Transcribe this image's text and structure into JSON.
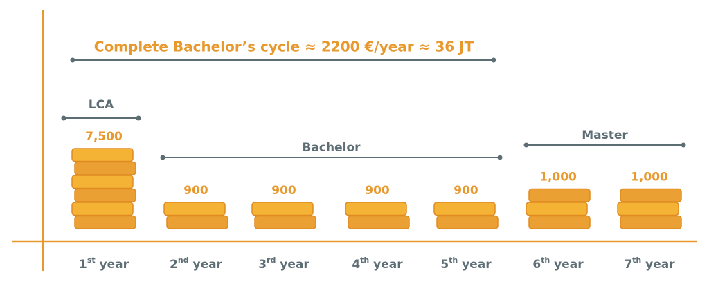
{
  "chart_data": {
    "type": "coin-stack",
    "title": "Complete Bachelor’s cycle ≈ 2200 €/year ≈ 36 JT",
    "categories": [
      "1st year",
      "2nd year",
      "3rd year",
      "4th year",
      "5th year",
      "6th year",
      "7th year"
    ],
    "values": [
      7500,
      900,
      900,
      900,
      900,
      1000,
      1000
    ],
    "value_labels": [
      "7,500",
      "900",
      "900",
      "900",
      "900",
      "1,000",
      "1,000"
    ],
    "annotations": [
      "LCA",
      "Bachelor",
      "Master"
    ],
    "color": "#f5b335"
  }
}
